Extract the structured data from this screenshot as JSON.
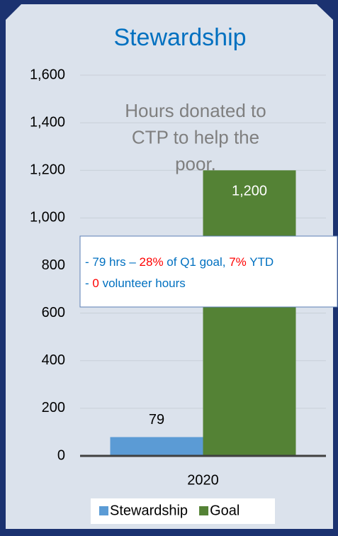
{
  "chart_data": {
    "type": "bar",
    "title": "Stewardship",
    "categories": [
      "2020"
    ],
    "series": [
      {
        "name": "Stewardship",
        "color": "#5b9bd5",
        "values": [
          79
        ],
        "value_labels": [
          "79"
        ]
      },
      {
        "name": "Goal",
        "color": "#548235",
        "values": [
          1200
        ],
        "value_labels": [
          "1,200"
        ]
      }
    ],
    "ylim": [
      0,
      1600
    ],
    "yticks": [
      0,
      200,
      400,
      600,
      800,
      {
        "value": 1000,
        "label": "1,000"
      },
      {
        "value": 1200,
        "label": "1,200"
      },
      {
        "value": 1400,
        "label": "1,400"
      },
      {
        "value": 1600,
        "label": "1,600"
      }
    ],
    "grid": true,
    "legend": "bottom",
    "annotation": [
      "Hours donated to",
      "CTP to help the",
      "poor."
    ],
    "note_box": [
      [
        {
          "text": "- 79 hrs – ",
          "color": "#0070c0"
        },
        {
          "text": "28%",
          "color": "#ff0000"
        },
        {
          "text": " of Q1 goal, ",
          "color": "#0070c0"
        },
        {
          "text": "7%",
          "color": "#ff0000"
        },
        {
          "text": " YTD",
          "color": "#0070c0"
        }
      ],
      [
        {
          "text": "- ",
          "color": "#0070c0"
        },
        {
          "text": "0",
          "color": "#ff0000"
        },
        {
          "text": " volunteer hours",
          "color": "#0070c0"
        }
      ]
    ]
  }
}
